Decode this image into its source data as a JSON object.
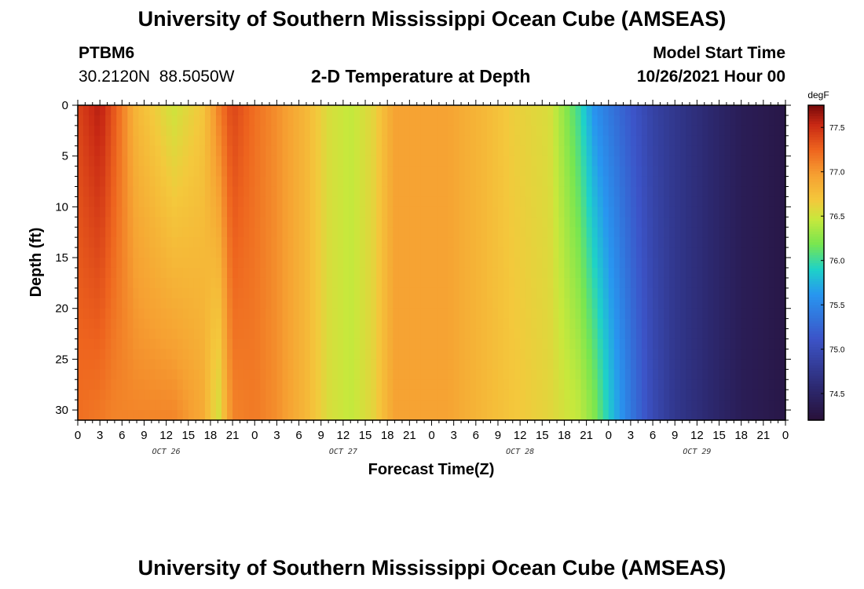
{
  "title": "University of Southern Mississippi Ocean Cube (AMSEAS)",
  "title_repeat": "University of Southern Mississippi Ocean Cube (AMSEAS)",
  "station": {
    "id": "PTBM6",
    "coordinates": "30.2120N  88.5050W"
  },
  "model_start": {
    "label": "Model Start Time",
    "value": "10/26/2021 Hour 00"
  },
  "chart_data": {
    "type": "heatmap",
    "title": "2-D Temperature at Depth",
    "xlabel": "Forecast Time(Z)",
    "ylabel": "Depth (ft)",
    "x_hours_range": [
      0,
      96
    ],
    "y_range": [
      0,
      31
    ],
    "y_ticks": [
      "0",
      "5",
      "10",
      "15",
      "20",
      "25",
      "30"
    ],
    "x_tick_labels": [
      "0",
      "3",
      "6",
      "9",
      "12",
      "15",
      "18",
      "21",
      "0",
      "3",
      "6",
      "9",
      "12",
      "15",
      "18",
      "21",
      "0",
      "3",
      "6",
      "9",
      "12",
      "15",
      "18",
      "21",
      "0",
      "3",
      "6",
      "9",
      "12",
      "15",
      "18",
      "21",
      "0"
    ],
    "date_labels": [
      "OCT 26",
      "OCT 27",
      "OCT 28",
      "OCT 29"
    ],
    "colorbar": {
      "unit": "degF",
      "range": [
        74.2,
        77.75
      ],
      "ticks": [
        "74.5",
        "75.0",
        "75.5",
        "76.0",
        "76.5",
        "77.0",
        "77.5"
      ]
    },
    "temperature_profile": {
      "description_hours": [
        0,
        3,
        5,
        8,
        13,
        17,
        19,
        21,
        24,
        27,
        31,
        34,
        37,
        40,
        43,
        46,
        50,
        55,
        59,
        64,
        68,
        70,
        72,
        75,
        78,
        81,
        86,
        90,
        96
      ],
      "surface_degF": [
        77.4,
        77.6,
        77.3,
        76.8,
        76.5,
        76.7,
        77.1,
        77.4,
        77.2,
        77.05,
        76.8,
        76.55,
        76.45,
        76.6,
        76.95,
        76.95,
        76.95,
        76.8,
        76.65,
        76.55,
        76.0,
        75.6,
        75.4,
        75.15,
        74.9,
        74.75,
        74.55,
        74.4,
        74.3
      ],
      "bottom_degF": [
        77.2,
        77.15,
        77.1,
        77.1,
        77.1,
        76.9,
        76.5,
        77.1,
        77.15,
        77.05,
        76.8,
        76.55,
        76.45,
        76.6,
        76.95,
        76.95,
        76.95,
        76.8,
        76.7,
        76.6,
        76.45,
        76.25,
        75.9,
        75.4,
        75.0,
        74.75,
        74.55,
        74.4,
        74.3
      ]
    }
  }
}
